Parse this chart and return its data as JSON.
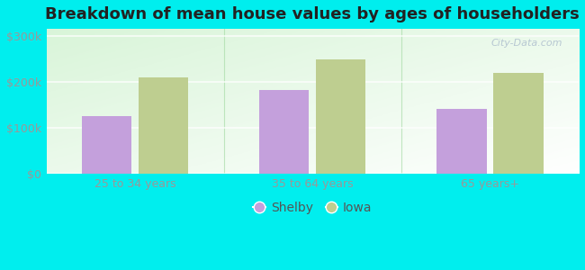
{
  "title": "Breakdown of mean house values by ages of householders",
  "categories": [
    "25 to 34 years",
    "35 to 64 years",
    "65 years+"
  ],
  "shelby_values": [
    125000,
    182000,
    140000
  ],
  "iowa_values": [
    210000,
    248000,
    220000
  ],
  "shelby_color": "#c4a0dc",
  "iowa_color": "#bece90",
  "yticks": [
    0,
    100000,
    200000,
    300000
  ],
  "ytick_labels": [
    "$0",
    "$100k",
    "$200k",
    "$300k"
  ],
  "ylim": [
    0,
    315000
  ],
  "background_color": "#00eeee",
  "legend_labels": [
    "Shelby",
    "Iowa"
  ],
  "bar_width": 0.28,
  "title_fontsize": 13,
  "tick_fontsize": 9,
  "legend_fontsize": 10,
  "watermark": "City-Data.com"
}
